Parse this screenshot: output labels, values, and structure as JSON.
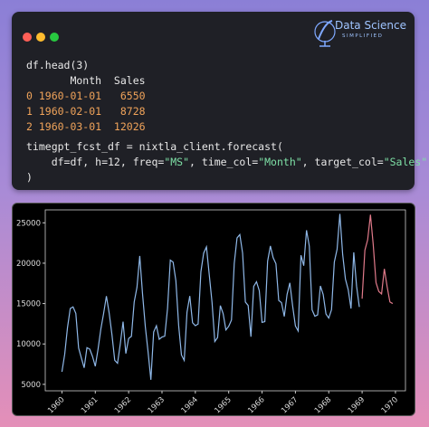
{
  "logo": {
    "title": "Data Science",
    "subtitle": "SIMPLIFIED"
  },
  "code": {
    "lines": [
      [
        {
          "text": "df.head(3)",
          "color": "#e8e8e8"
        }
      ],
      [
        {
          "text": "       Month  Sales",
          "color": "#e8e8e8"
        }
      ],
      [
        {
          "text": "0 1960-01-01   6550",
          "color": "#f0a35a"
        }
      ],
      [
        {
          "text": "1 1960-02-01   8728",
          "color": "#f0a35a"
        }
      ],
      [
        {
          "text": "2 1960-03-01  12026",
          "color": "#f0a35a"
        }
      ],
      [
        {
          "text": "timegpt_fcst_df = nixtla_client.forecast(",
          "color": "#e8e8e8"
        }
      ],
      [
        {
          "text": "    df=df, h=12, freq=",
          "color": "#e8e8e8"
        },
        {
          "text": "\"MS\"",
          "color": "#7ee0a6"
        },
        {
          "text": ", time_col=",
          "color": "#e8e8e8"
        },
        {
          "text": "\"Month\"",
          "color": "#7ee0a6"
        },
        {
          "text": ", target_col=",
          "color": "#e8e8e8"
        },
        {
          "text": "\"Sales\"",
          "color": "#7ee0a6"
        }
      ],
      [
        {
          "text": ")",
          "color": "#e8e8e8"
        }
      ]
    ]
  },
  "chart_data": {
    "type": "line",
    "xlim": [
      1959.5,
      1970.3
    ],
    "xticks": [
      1960,
      1961,
      1962,
      1963,
      1964,
      1965,
      1966,
      1967,
      1968,
      1969,
      1970
    ],
    "ylim": [
      4200,
      26600
    ],
    "yticks": [
      5000,
      10000,
      15000,
      20000,
      25000
    ],
    "series": [
      {
        "color": "#8fb8e8",
        "x": [
          "1960-01",
          "1960-02",
          "1960-03",
          "1960-04",
          "1960-05",
          "1960-06",
          "1960-07",
          "1960-08",
          "1960-09",
          "1960-10",
          "1960-11",
          "1960-12",
          "1961-01",
          "1961-02",
          "1961-03",
          "1961-04",
          "1961-05",
          "1961-06",
          "1961-07",
          "1961-08",
          "1961-09",
          "1961-10",
          "1961-11",
          "1961-12",
          "1962-01",
          "1962-02",
          "1962-03",
          "1962-04",
          "1962-05",
          "1962-06",
          "1962-07",
          "1962-08",
          "1962-09",
          "1962-10",
          "1962-11",
          "1962-12",
          "1963-01",
          "1963-02",
          "1963-03",
          "1963-04",
          "1963-05",
          "1963-06",
          "1963-07",
          "1963-08",
          "1963-09",
          "1963-10",
          "1963-11",
          "1963-12",
          "1964-01",
          "1964-02",
          "1964-03",
          "1964-04",
          "1964-05",
          "1964-06",
          "1964-07",
          "1964-08",
          "1964-09",
          "1964-10",
          "1964-11",
          "1964-12",
          "1965-01",
          "1965-02",
          "1965-03",
          "1965-04",
          "1965-05",
          "1965-06",
          "1965-07",
          "1965-08",
          "1965-09",
          "1965-10",
          "1965-11",
          "1965-12",
          "1966-01",
          "1966-02",
          "1966-03",
          "1966-04",
          "1966-05",
          "1966-06",
          "1966-07",
          "1966-08",
          "1966-09",
          "1966-10",
          "1966-11",
          "1966-12",
          "1967-01",
          "1967-02",
          "1967-03",
          "1967-04",
          "1967-05",
          "1967-06",
          "1967-07",
          "1967-08",
          "1967-09",
          "1967-10",
          "1967-11",
          "1967-12",
          "1968-01",
          "1968-02",
          "1968-03",
          "1968-04",
          "1968-05",
          "1968-06",
          "1968-07",
          "1968-08",
          "1968-09",
          "1968-10",
          "1968-11",
          "1968-12"
        ],
        "values": [
          6550,
          8728,
          12026,
          14395,
          14587,
          13791,
          9498,
          8251,
          7049,
          9545,
          9364,
          8456,
          7237,
          9374,
          11837,
          13784,
          15926,
          13821,
          11143,
          7975,
          7610,
          10015,
          12759,
          8816,
          10677,
          10947,
          15200,
          17010,
          20900,
          16205,
          12143,
          8997,
          5568,
          11474,
          12256,
          10583,
          10862,
          10965,
          14405,
          20379,
          20128,
          17816,
          12268,
          8642,
          7962,
          13932,
          15936,
          12628,
          12267,
          12470,
          18944,
          21259,
          22015,
          18581,
          15175,
          10306,
          10792,
          14752,
          13754,
          11738,
          12181,
          12965,
          19990,
          23125,
          23541,
          21247,
          15189,
          14767,
          10895,
          17130,
          17697,
          16611,
          12674,
          12760,
          20249,
          22135,
          20677,
          19933,
          15388,
          15113,
          13401,
          16135,
          17562,
          14720,
          12225,
          11608,
          20985,
          19692,
          24081,
          22114,
          14220,
          13434,
          13598,
          17187,
          16119,
          13713,
          13210,
          14251,
          20139,
          21725,
          26099,
          21084,
          18024,
          16722,
          14385,
          21342,
          17180,
          14577
        ]
      },
      {
        "color": "#e07a8a",
        "x": [
          "1969-01",
          "1969-02",
          "1969-03",
          "1969-04",
          "1969-05",
          "1969-06",
          "1969-07",
          "1969-08",
          "1969-09",
          "1969-10",
          "1969-11",
          "1969-12"
        ],
        "values": [
          15600,
          21600,
          22900,
          26000,
          22300,
          17600,
          16500,
          16200,
          19300,
          17100,
          15200,
          15000
        ]
      }
    ]
  }
}
